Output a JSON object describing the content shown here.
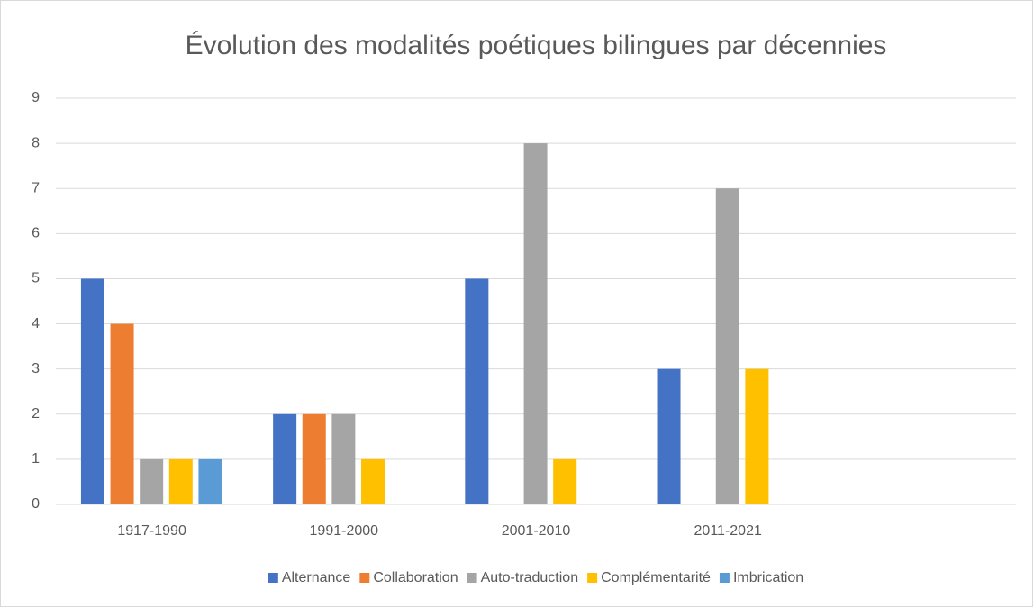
{
  "chart_data": {
    "type": "bar",
    "title": "Évolution des modalités poétiques bilingues par décennies",
    "categories": [
      "1917-1990",
      "1991-2000",
      "2001-2010",
      "2011-2021",
      null
    ],
    "series": [
      {
        "name": "Alternance",
        "color": "#4472c4",
        "values": [
          5,
          2,
          5,
          3,
          null
        ]
      },
      {
        "name": "Collaboration",
        "color": "#ed7d31",
        "values": [
          4,
          2,
          null,
          null,
          null
        ]
      },
      {
        "name": "Auto-traduction",
        "color": "#a5a5a5",
        "values": [
          1,
          2,
          8,
          7,
          null
        ]
      },
      {
        "name": "Complémentarité",
        "color": "#ffc000",
        "values": [
          1,
          1,
          1,
          3,
          null
        ]
      },
      {
        "name": "Imbrication",
        "color": "#5b9bd5",
        "values": [
          1,
          null,
          null,
          null,
          null
        ]
      }
    ],
    "ylim": [
      0,
      9
    ],
    "yticks": [
      0,
      1,
      2,
      3,
      4,
      5,
      6,
      7,
      8,
      9
    ],
    "grid": true,
    "legend": "bottom"
  }
}
